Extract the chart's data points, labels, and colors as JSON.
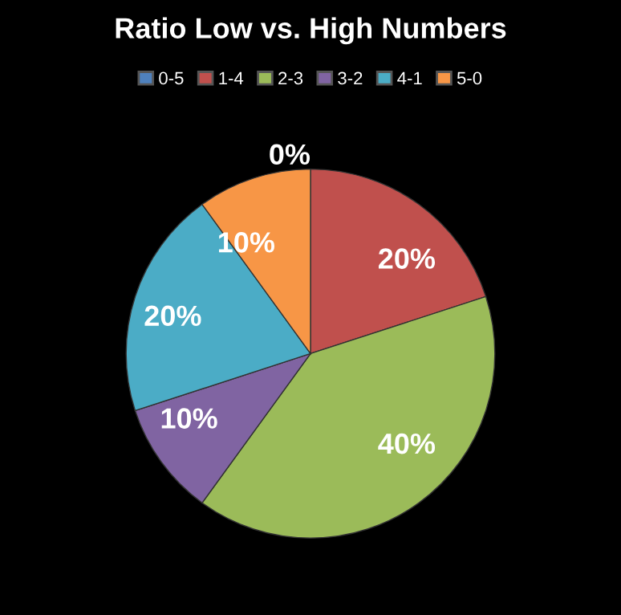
{
  "chart_data": {
    "type": "pie",
    "title": "Ratio Low vs. High Numbers",
    "categories": [
      "0-5",
      "1-4",
      "2-3",
      "3-2",
      "4-1",
      "5-0"
    ],
    "values": [
      0,
      20,
      40,
      10,
      20,
      10
    ],
    "colors": [
      "#4f81bd",
      "#c0504d",
      "#9bbb59",
      "#8064a2",
      "#4bacc6",
      "#f79646"
    ],
    "value_labels": [
      "0%",
      "20%",
      "40%",
      "10%",
      "20%",
      "10%"
    ],
    "legend": "top"
  }
}
